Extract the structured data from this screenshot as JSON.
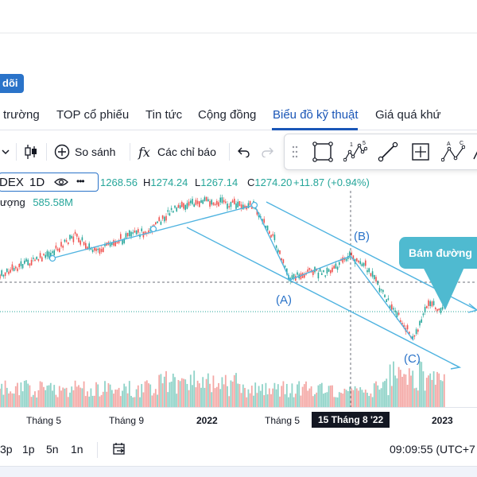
{
  "header": {
    "follow_label": "dõi"
  },
  "nav": {
    "items": [
      {
        "label": "trường"
      },
      {
        "label": "TOP cổ phiếu"
      },
      {
        "label": "Tin tức"
      },
      {
        "label": "Cộng đồng"
      },
      {
        "label": "Biểu đồ kỹ thuật",
        "active": true
      },
      {
        "label": "Giá quá khứ"
      }
    ]
  },
  "toolbar": {
    "compare_label": "So sánh",
    "indicators_label": "Các chỉ báo",
    "indicator_glyph": "fx"
  },
  "drawing_tools": [
    "drag-handle-icon",
    "rectangle-icon",
    "elliott-wave-icon",
    "trend-line-icon",
    "crosshair-box-icon",
    "abc-pattern-icon",
    "more-icon"
  ],
  "drawing_tool_labels": {
    "wave_1": "1",
    "wave_5": "5",
    "abc_a": "A",
    "abc_c": "C"
  },
  "legend": {
    "symbol": "DEX",
    "interval": "1D",
    "more": "•••",
    "open": "1268.56",
    "high_key": "H",
    "high": "1274.24",
    "low_key": "L",
    "low": "1267.14",
    "close_key": "C",
    "close": "1274.20",
    "change": "+11.87 (+0.94%)",
    "volume_label": "ượng",
    "volume": "585.58M"
  },
  "annotations": {
    "wave_a": "(A)",
    "wave_b": "(B)",
    "wave_c": "(C)",
    "callout": "Bám đường"
  },
  "xaxis": {
    "labels": [
      "Tháng 5",
      "Tháng 9",
      "2022",
      "Tháng 5",
      "15 Tháng 8 '22",
      "2023"
    ],
    "highlight_index": 4
  },
  "bottom": {
    "timeframes": [
      "3p",
      "1p",
      "5n",
      "1n"
    ],
    "clock": "09:09:55 (UTC+7"
  },
  "colors": {
    "up": "#26a69a",
    "down": "#ef5350",
    "accent": "#2a73c9",
    "channel": "#4fb3e0",
    "callout": "#4fbad0"
  }
}
